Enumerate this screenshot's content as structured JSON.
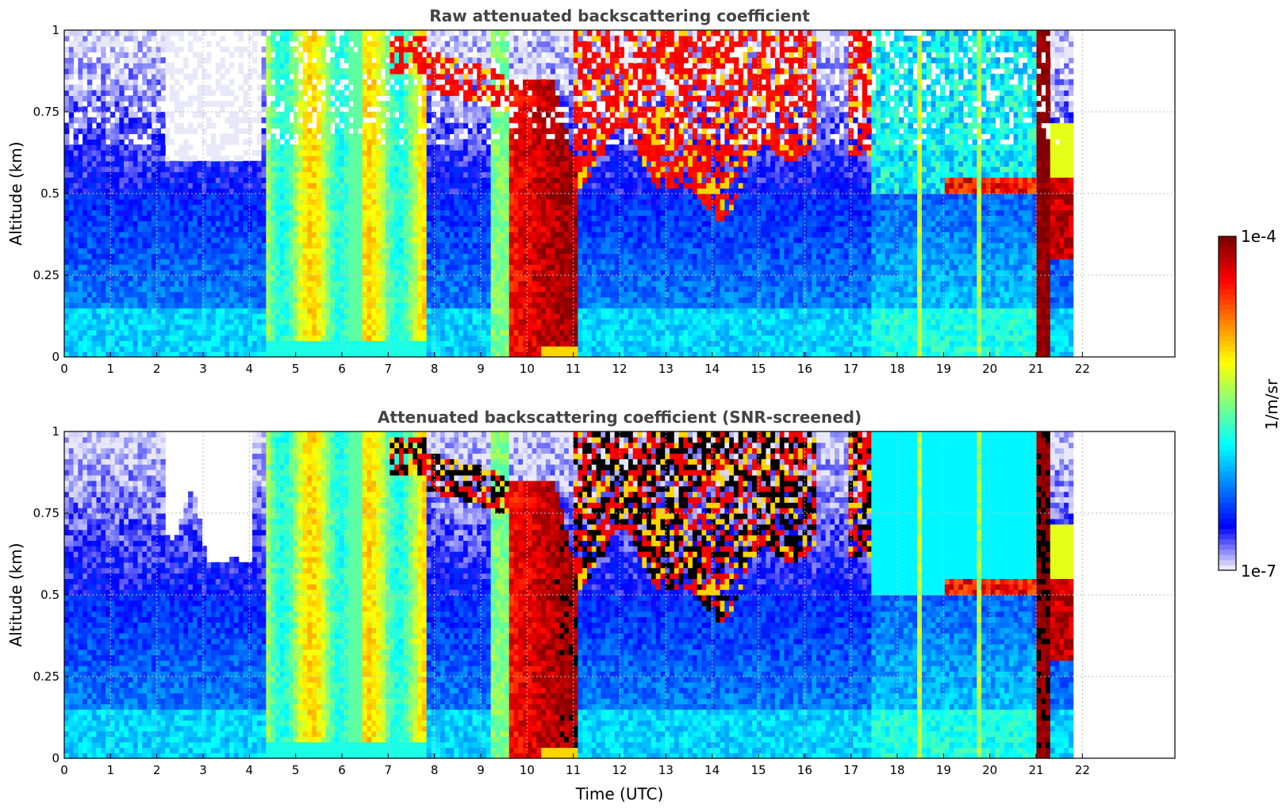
{
  "figure": {
    "colorbar": {
      "max_label": "1e-4",
      "min_label": "1e-7",
      "unit_label": "1/m/sr",
      "scale": "log",
      "colormap": [
        "#e8e8f8",
        "#0000ff",
        "#0080ff",
        "#00ffff",
        "#80ff80",
        "#ffff00",
        "#ff8000",
        "#ff0000",
        "#800000"
      ]
    }
  },
  "chart_data": [
    {
      "type": "heatmap",
      "title": "Raw attenuated backscattering coefficient",
      "xlabel": "",
      "ylabel": "Altitude (km)",
      "xlim": [
        0,
        24
      ],
      "ylim": [
        0,
        1
      ],
      "xticks": [
        "0",
        "1",
        "2",
        "3",
        "4",
        "5",
        "6",
        "7",
        "8",
        "9",
        "10",
        "11",
        "12",
        "13",
        "14",
        "15",
        "16",
        "17",
        "18",
        "19",
        "20",
        "21",
        "22"
      ],
      "yticks": [
        "0",
        "0.25",
        "0.5",
        "0.75",
        "1"
      ],
      "grid": true,
      "data_end_hour": 21.8,
      "value_scale": "log10 backscatter, 1e-7 to 1e-4 1/m/sr",
      "features": [
        {
          "name": "background-boundary-layer",
          "x_range": [
            0,
            21.8
          ],
          "y_range": [
            0,
            0.5
          ],
          "level": -6.3
        },
        {
          "name": "yellow-green-column",
          "x_range": [
            4.4,
            7.8
          ],
          "y_range": [
            0,
            1
          ],
          "level": -5.1
        },
        {
          "name": "red-cloud-column",
          "x_range": [
            9.6,
            11.0
          ],
          "y_range": [
            0,
            0.85
          ],
          "level": -4.2
        },
        {
          "name": "upper-cloud-layer",
          "x_range": [
            7.0,
            16.3
          ],
          "y_range": [
            0.55,
            1
          ],
          "level": -4.3
        },
        {
          "name": "narrow-column-21h",
          "x_range": [
            21.0,
            21.3
          ],
          "y_range": [
            0,
            1
          ],
          "level": -4.1
        }
      ]
    },
    {
      "type": "heatmap",
      "title": "Attenuated backscattering coefficient (SNR-screened)",
      "xlabel": "Time (UTC)",
      "ylabel": "Altitude (km)",
      "xlim": [
        0,
        24
      ],
      "ylim": [
        0,
        1
      ],
      "xticks": [
        "0",
        "1",
        "2",
        "3",
        "4",
        "5",
        "6",
        "7",
        "8",
        "9",
        "10",
        "11",
        "12",
        "13",
        "14",
        "15",
        "16",
        "17",
        "18",
        "19",
        "20",
        "21",
        "22"
      ],
      "yticks": [
        "0",
        "0.25",
        "0.5",
        "0.75",
        "1"
      ],
      "grid": true,
      "data_end_hour": 21.8,
      "value_scale": "log10 backscatter, 1e-7 to 1e-4 1/m/sr",
      "features": [
        {
          "name": "background-boundary-layer",
          "x_range": [
            0,
            21.8
          ],
          "y_range": [
            0,
            0.6
          ],
          "level": -6.2
        },
        {
          "name": "yellow-green-column",
          "x_range": [
            4.4,
            7.8
          ],
          "y_range": [
            0,
            1
          ],
          "level": -5.1
        },
        {
          "name": "red-cloud-column",
          "x_range": [
            9.6,
            11.0
          ],
          "y_range": [
            0,
            0.85
          ],
          "level": -4.2
        },
        {
          "name": "saturated-cloud-layer",
          "x_range": [
            7.0,
            16.3
          ],
          "y_range": [
            0.55,
            1
          ],
          "level": -3.9
        },
        {
          "name": "narrow-column-21h",
          "x_range": [
            21.0,
            21.3
          ],
          "y_range": [
            0,
            1
          ],
          "level": -4.1
        }
      ]
    }
  ]
}
